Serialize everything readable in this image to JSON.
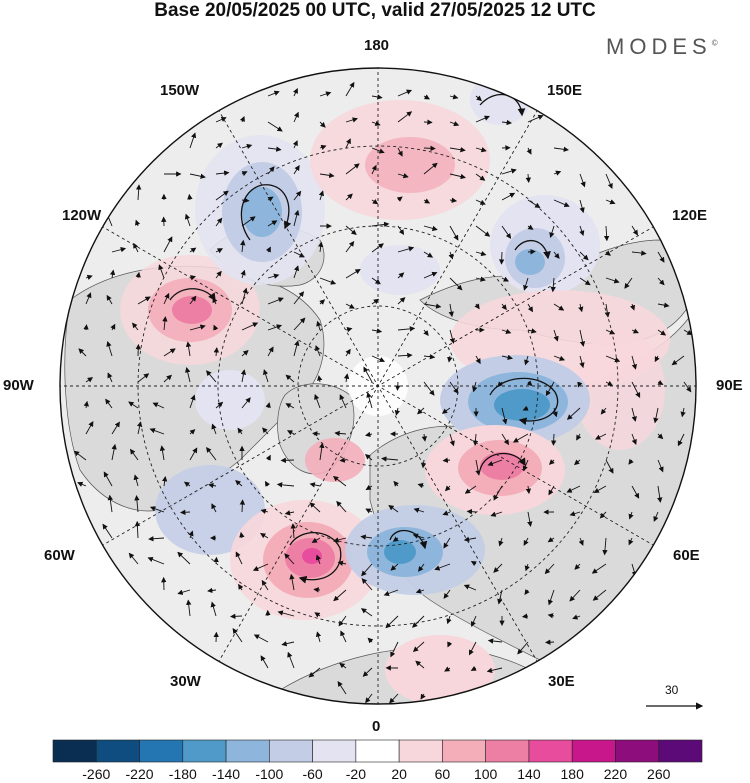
{
  "title": "Base 20/05/2025 00 UTC, valid 27/05/2025 12 UTC",
  "brand": "MODES",
  "brand_mark": "©",
  "longitudes": {
    "top": "180",
    "top_left": "150W",
    "top_right": "150E",
    "upper_left": "120W",
    "upper_right": "120E",
    "left": "90W",
    "right": "90E",
    "lower_left": "60W",
    "lower_right": "60E",
    "bottom_left": "30W",
    "bottom_right": "30E",
    "bottom": "0"
  },
  "reference_vector": {
    "label": "30"
  },
  "colorbar": {
    "labels": [
      "-260",
      "-220",
      "-180",
      "-140",
      "-100",
      "-60",
      "-20",
      "20",
      "60",
      "100",
      "140",
      "180",
      "220",
      "260"
    ],
    "colors": [
      "#0a2d52",
      "#0f4d80",
      "#2376b1",
      "#4f9ac8",
      "#8eb6dc",
      "#c3cde6",
      "#e3e3f1",
      "#ffffff",
      "#f7d7dc",
      "#f3aeb9",
      "#ee7fa4",
      "#e84c9c",
      "#c8178a",
      "#8e0d7c",
      "#5b0a78"
    ]
  },
  "map_colors": {
    "land": "#dadada",
    "ocean": "#ededed",
    "coast": "#555555",
    "grid": "#222222"
  }
}
